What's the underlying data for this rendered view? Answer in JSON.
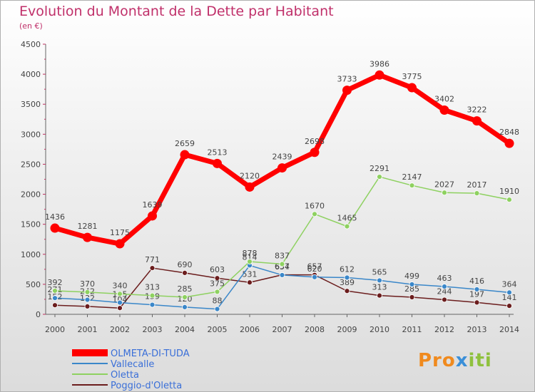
{
  "header": {
    "title": "Evolution du Montant de la Dette par Habitant",
    "subtitle": "(en €)"
  },
  "logo": {
    "part1": "Pro",
    "part2": "x",
    "part3": "iti"
  },
  "chart_data": {
    "type": "line",
    "title": "Evolution du Montant de la Dette par Habitant",
    "ylabel": "(en €)",
    "x": [
      "2000",
      "2001",
      "2002",
      "2003",
      "2004",
      "2005",
      "2006",
      "2007",
      "2008",
      "2009",
      "2010",
      "2011",
      "2012",
      "2013",
      "2014"
    ],
    "yticks": [
      0,
      500,
      1000,
      1500,
      2000,
      2500,
      3000,
      3500,
      4000,
      4500
    ],
    "ylim": [
      0,
      4500
    ],
    "grid": false,
    "legend_position": "bottom-left",
    "series": [
      {
        "name": "OLMETA-DI-TUDA",
        "color": "#ff0000",
        "values": [
          1436,
          1281,
          1175,
          1639,
          2659,
          2513,
          2120,
          2439,
          2698,
          3733,
          3986,
          3775,
          3402,
          3222,
          2848
        ]
      },
      {
        "name": "Vallecalle",
        "color": "#3a87c9",
        "values": [
          271,
          242,
          195,
          159,
          120,
          88,
          814,
          654,
          620,
          612,
          565,
          499,
          463,
          416,
          364
        ]
      },
      {
        "name": "Oletta",
        "color": "#8ed160",
        "values": [
          392,
          370,
          340,
          313,
          285,
          375,
          878,
          837,
          1670,
          1465,
          2291,
          2147,
          2027,
          2017,
          1910
        ]
      },
      {
        "name": "Poggio-d'Oletta",
        "color": "#6b1d1d",
        "values": [
          152,
          132,
          104,
          771,
          690,
          603,
          531,
          657,
          657,
          389,
          313,
          285,
          244,
          197,
          141
        ]
      }
    ]
  }
}
